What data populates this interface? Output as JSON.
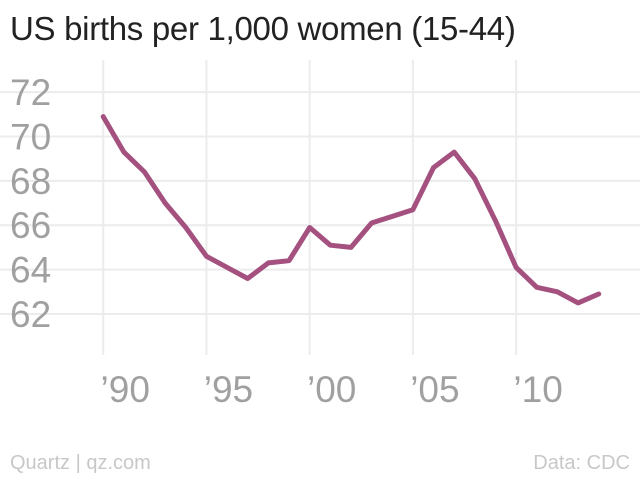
{
  "chart_data": {
    "type": "line",
    "title": "US births per 1,000 women (15-44)",
    "xlabel": "",
    "ylabel": "",
    "x": [
      1990,
      1991,
      1992,
      1993,
      1994,
      1995,
      1996,
      1997,
      1998,
      1999,
      2000,
      2001,
      2002,
      2003,
      2004,
      2005,
      2006,
      2007,
      2008,
      2009,
      2010,
      2011,
      2012,
      2013,
      2014
    ],
    "series": [
      {
        "values": [
          70.9,
          69.3,
          68.4,
          67.0,
          65.9,
          64.6,
          64.1,
          63.6,
          64.3,
          64.4,
          65.9,
          65.1,
          65.0,
          66.1,
          66.4,
          66.7,
          68.6,
          69.3,
          68.1,
          66.2,
          64.1,
          63.2,
          63.0,
          62.5,
          62.9
        ]
      }
    ],
    "xticks": [
      1990,
      1995,
      2000,
      2005,
      2010
    ],
    "xtick_labels": [
      "’90",
      "’95",
      "’00",
      "’05",
      "’10"
    ],
    "yticks": [
      62,
      64,
      66,
      68,
      70,
      72
    ],
    "ytick_labels": [
      "62",
      "64",
      "66",
      "68",
      "70",
      "72"
    ],
    "xlim": [
      1985,
      2016
    ],
    "ylim": [
      60.6,
      73
    ],
    "grid": true,
    "legend": "none",
    "colors": {
      "line": "#a4517f",
      "grid": "#ececec",
      "tick_text": "#a0a0a0"
    }
  },
  "footer": {
    "source_left": "Quartz | qz.com",
    "source_right": "Data: CDC"
  }
}
